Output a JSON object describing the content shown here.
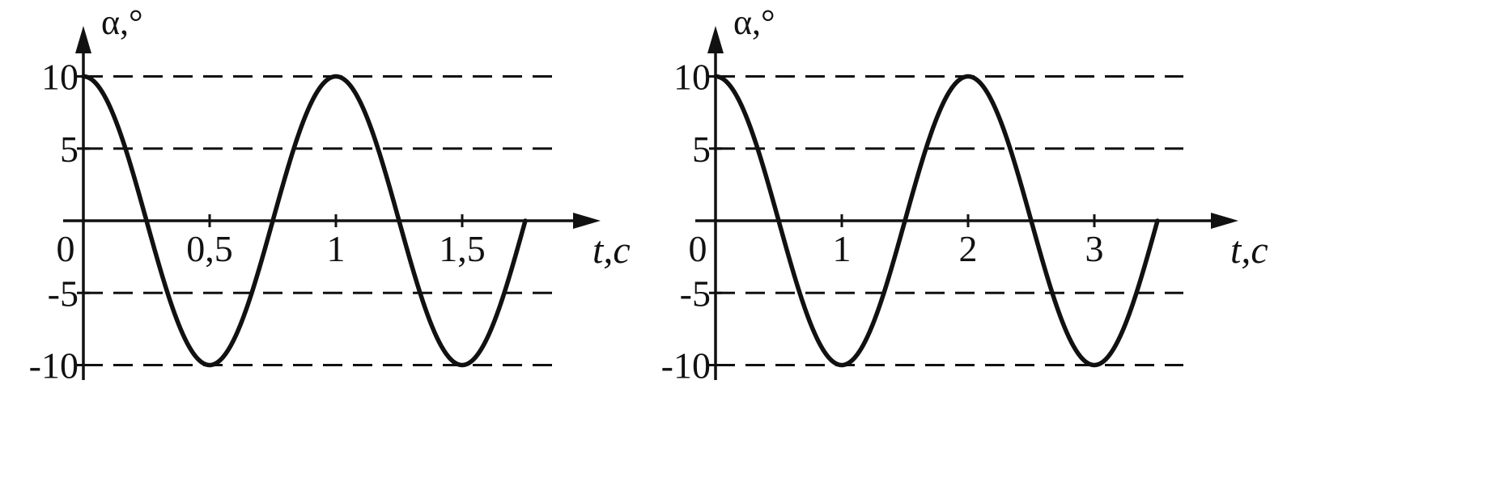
{
  "colors": {
    "ink": "#111111",
    "background": "#ffffff"
  },
  "chart_data": [
    {
      "type": "line",
      "title": "",
      "xlabel": "t,c",
      "ylabel": "α,°",
      "xlim": [
        0,
        1.75
      ],
      "ylim": [
        -10,
        10
      ],
      "x_ticks": [
        0.5,
        1,
        1.5
      ],
      "x_tick_labels": [
        "0,5",
        "1",
        "1,5"
      ],
      "y_ticks": [
        10,
        5,
        -5,
        -10
      ],
      "y_tick_labels": [
        "10",
        "5",
        "-5",
        "-10"
      ],
      "origin_label": "0",
      "dashed_gridlines_y": [
        10,
        5,
        -5,
        -10
      ],
      "grid": "dashed horizontal",
      "legend": "none",
      "series": [
        {
          "function": "cosine",
          "amplitude": 10,
          "period": 1,
          "x_start": 0,
          "x_end": 1.75,
          "points": [
            [
              0,
              10
            ],
            [
              0.25,
              0
            ],
            [
              0.5,
              -10
            ],
            [
              0.75,
              0
            ],
            [
              1,
              10
            ],
            [
              1.25,
              0
            ],
            [
              1.5,
              -10
            ],
            [
              1.75,
              0
            ]
          ]
        }
      ]
    },
    {
      "type": "line",
      "title": "",
      "xlabel": "t,c",
      "ylabel": "α,°",
      "xlim": [
        0,
        3.5
      ],
      "ylim": [
        -10,
        10
      ],
      "x_ticks": [
        1,
        2,
        3
      ],
      "x_tick_labels": [
        "1",
        "2",
        "3"
      ],
      "y_ticks": [
        10,
        5,
        -5,
        -10
      ],
      "y_tick_labels": [
        "10",
        "5",
        "-5",
        "-10"
      ],
      "origin_label": "0",
      "dashed_gridlines_y": [
        10,
        5,
        -5,
        -10
      ],
      "grid": "dashed horizontal",
      "legend": "none",
      "series": [
        {
          "function": "cosine",
          "amplitude": 10,
          "period": 2,
          "x_start": 0,
          "x_end": 3.5,
          "points": [
            [
              0,
              10
            ],
            [
              0.5,
              0
            ],
            [
              1,
              -10
            ],
            [
              1.5,
              0
            ],
            [
              2,
              10
            ],
            [
              2.5,
              0
            ],
            [
              3,
              -10
            ],
            [
              3.5,
              0
            ]
          ]
        }
      ]
    }
  ]
}
